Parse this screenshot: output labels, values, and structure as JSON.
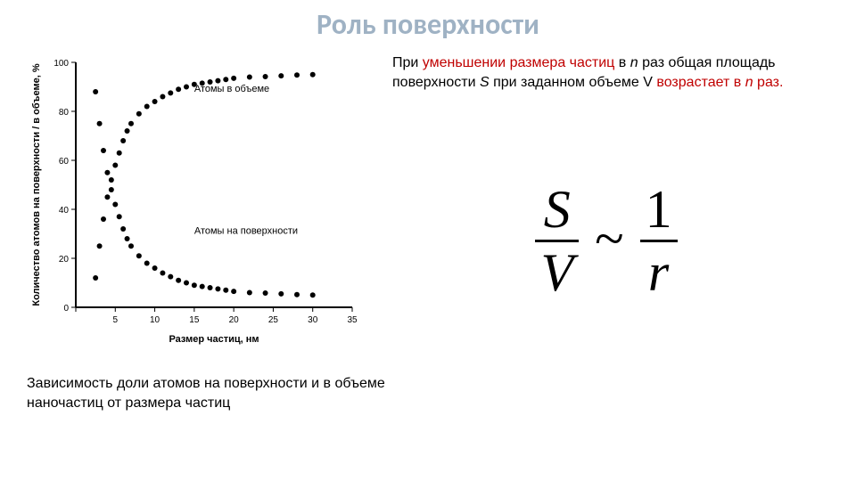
{
  "title": "Роль поверхности",
  "body": {
    "prefix": "При ",
    "accent1": "уменьшении размера частиц",
    "mid1": " в ",
    "n1": "n",
    "mid2": " раз общая площадь поверхности ",
    "S": "S",
    "mid3": " при заданном объеме V ",
    "accent2": "возрастает в ",
    "n2": "n",
    "accent2_tail": " раз.",
    "suffix": ""
  },
  "formula": {
    "S": "S",
    "V": "V",
    "tilde": "~",
    "one": "1",
    "r": "r"
  },
  "caption": "Зависимость доли атомов на поверхности и в объеме наночастиц от размера частиц",
  "chart": {
    "type": "scatter",
    "background_color": "#ffffff",
    "axis_color": "#000000",
    "tick_color": "#000000",
    "point_color": "#000000",
    "xlabel": "Размер частиц, нм",
    "ylabel": "Количество атомов на поверхности / в объеме, %",
    "xlim": [
      0,
      35
    ],
    "ylim": [
      0,
      100
    ],
    "xticks": [
      0,
      5,
      10,
      15,
      20,
      25,
      30,
      35
    ],
    "yticks": [
      0,
      20,
      40,
      60,
      80,
      100
    ],
    "label_fontsize": 11,
    "tick_fontsize": 10,
    "axis_linewidth": 2,
    "marker_size": 3,
    "series_bulk": {
      "label": "Атомы в объеме",
      "label_xy": [
        15,
        88
      ],
      "x": [
        2.5,
        3,
        3.5,
        4,
        4.5,
        5,
        5.5,
        6,
        6.5,
        7,
        8,
        9,
        10,
        11,
        12,
        13,
        14,
        15,
        16,
        17,
        18,
        19,
        20,
        22,
        24,
        26,
        28,
        30
      ],
      "y": [
        12,
        25,
        36,
        45,
        52,
        58,
        63,
        68,
        72,
        75,
        79,
        82,
        84,
        86,
        87.5,
        89,
        90,
        91,
        91.5,
        92,
        92.5,
        93,
        93.5,
        94,
        94.2,
        94.5,
        94.8,
        95
      ]
    },
    "series_surface": {
      "label": "Атомы на поверхности",
      "label_xy": [
        15,
        30
      ],
      "x": [
        2.5,
        3,
        3.5,
        4,
        4.5,
        5,
        5.5,
        6,
        6.5,
        7,
        8,
        9,
        10,
        11,
        12,
        13,
        14,
        15,
        16,
        17,
        18,
        19,
        20,
        22,
        24,
        26,
        28,
        30
      ],
      "y": [
        88,
        75,
        64,
        55,
        48,
        42,
        37,
        32,
        28,
        25,
        21,
        18,
        16,
        14,
        12.5,
        11,
        10,
        9,
        8.5,
        8,
        7.5,
        7,
        6.5,
        6,
        5.8,
        5.5,
        5.2,
        5
      ]
    }
  }
}
